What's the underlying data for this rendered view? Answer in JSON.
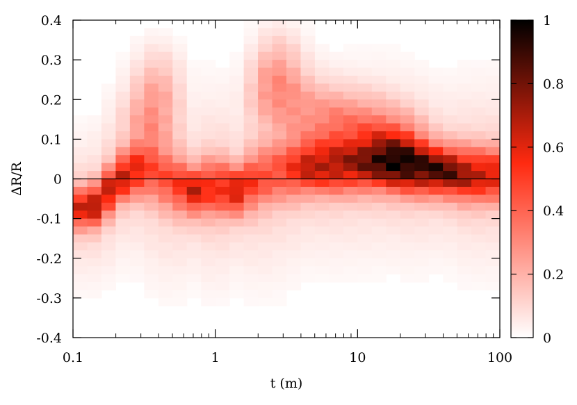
{
  "chart_data": {
    "type": "heatmap",
    "title": "",
    "xlabel": "t (m)",
    "ylabel": "ΔR/R",
    "x_scale": "log",
    "xlim": [
      0.1,
      100
    ],
    "ylim": [
      -0.4,
      0.4
    ],
    "x_ticks": [
      "0.1",
      "1",
      "10",
      "100"
    ],
    "y_ticks": [
      "0.4",
      "0.3",
      "0.2",
      "0.1",
      "0",
      "-0.1",
      "-0.2",
      "-0.3",
      "-0.4"
    ],
    "colorbar": {
      "range": [
        0,
        1
      ],
      "ticks": [
        "1",
        "0.8",
        "0.6",
        "0.4",
        "0.2",
        "0"
      ],
      "colors": [
        "#ffffff",
        "#ff2a10",
        "#000000"
      ]
    },
    "reference_line_y": 0,
    "density_ridge": [
      {
        "t": 0.1,
        "center": -0.07,
        "width": 0.035,
        "peak": 0.45
      },
      {
        "t": 0.13,
        "center": -0.08,
        "width": 0.035,
        "peak": 0.6
      },
      {
        "t": 0.18,
        "center": -0.03,
        "width": 0.04,
        "peak": 0.55
      },
      {
        "t": 0.25,
        "center": 0.02,
        "width": 0.04,
        "peak": 0.55
      },
      {
        "t": 0.35,
        "center": 0.02,
        "width": 0.05,
        "peak": 0.35
      },
      {
        "t": 0.5,
        "center": -0.01,
        "width": 0.05,
        "peak": 0.35
      },
      {
        "t": 0.7,
        "center": -0.03,
        "width": 0.04,
        "peak": 0.55
      },
      {
        "t": 1.0,
        "center": -0.02,
        "width": 0.05,
        "peak": 0.4
      },
      {
        "t": 1.4,
        "center": -0.03,
        "width": 0.04,
        "peak": 0.55
      },
      {
        "t": 2.0,
        "center": 0.0,
        "width": 0.05,
        "peak": 0.35
      },
      {
        "t": 3.0,
        "center": 0.02,
        "width": 0.05,
        "peak": 0.35
      },
      {
        "t": 4.5,
        "center": 0.03,
        "width": 0.045,
        "peak": 0.55
      },
      {
        "t": 7.0,
        "center": 0.03,
        "width": 0.045,
        "peak": 0.55
      },
      {
        "t": 10.0,
        "center": 0.035,
        "width": 0.045,
        "peak": 0.55
      },
      {
        "t": 15.0,
        "center": 0.04,
        "width": 0.045,
        "peak": 0.65
      },
      {
        "t": 25.0,
        "center": 0.03,
        "width": 0.045,
        "peak": 0.7
      },
      {
        "t": 40.0,
        "center": 0.02,
        "width": 0.04,
        "peak": 0.8
      },
      {
        "t": 60.0,
        "center": 0.01,
        "width": 0.045,
        "peak": 0.6
      },
      {
        "t": 100.0,
        "center": 0.01,
        "width": 0.045,
        "peak": 0.5
      }
    ],
    "upper_halo": [
      {
        "t": 0.35,
        "y": 0.15,
        "value": 0.18
      },
      {
        "t": 0.4,
        "y": 0.25,
        "value": 0.12
      },
      {
        "t": 2.5,
        "y": 0.22,
        "value": 0.18
      },
      {
        "t": 2.8,
        "y": 0.3,
        "value": 0.12
      },
      {
        "t": 4.0,
        "y": 0.18,
        "value": 0.15
      },
      {
        "t": 7.0,
        "y": 0.14,
        "value": 0.22
      },
      {
        "t": 12.0,
        "y": 0.12,
        "value": 0.22
      },
      {
        "t": 20.0,
        "y": 0.08,
        "value": 0.28
      }
    ]
  }
}
